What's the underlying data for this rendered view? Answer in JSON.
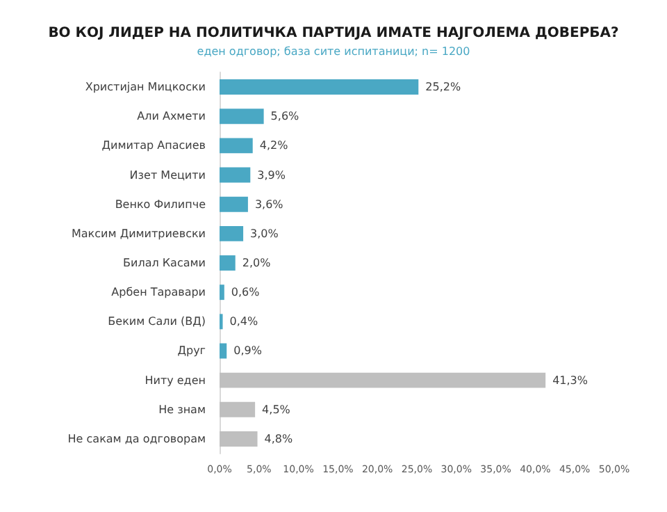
{
  "chart_data": {
    "type": "bar",
    "orientation": "horizontal",
    "title": "ВО КОЈ ЛИДЕР НА ПОЛИТИЧКА ПАРТИЈА ИМАТЕ НАЈГОЛЕМА ДОВЕРБА?",
    "subtitle": "еден одговор; база сите испитаници; n= 1200",
    "categories": [
      "Христијан Мицкоски",
      "Али Ахмети",
      "Димитар Апасиев",
      "Изет Мецити",
      "Венко Филипче",
      "Максим Димитриевски",
      "Билал Касами",
      "Арбен Таравари",
      "Беким Сали (ВД)",
      "Друг",
      "Ниту еден",
      "Не знам",
      "Не сакам да одговорам"
    ],
    "values": [
      25.2,
      5.6,
      4.2,
      3.9,
      3.6,
      3.0,
      2.0,
      0.6,
      0.4,
      0.9,
      41.3,
      4.5,
      4.8
    ],
    "value_labels": [
      "25,2%",
      "5,6%",
      "4,2%",
      "3,9%",
      "3,6%",
      "3,0%",
      "2,0%",
      "0,6%",
      "0,4%",
      "0,9%",
      "41,3%",
      "4,5%",
      "4,8%"
    ],
    "colors": [
      "#4aa8c4",
      "#4aa8c4",
      "#4aa8c4",
      "#4aa8c4",
      "#4aa8c4",
      "#4aa8c4",
      "#4aa8c4",
      "#4aa8c4",
      "#4aa8c4",
      "#4aa8c4",
      "#bfbfbf",
      "#bfbfbf",
      "#bfbfbf"
    ],
    "xlim": [
      0,
      50
    ],
    "xticks": [
      {
        "value": 0,
        "label": "0,0%"
      },
      {
        "value": 5,
        "label": "5,0%"
      },
      {
        "value": 10,
        "label": "10,0%"
      },
      {
        "value": 15,
        "label": "15,0%"
      },
      {
        "value": 20,
        "label": "20,0%"
      },
      {
        "value": 25,
        "label": "25,0%"
      },
      {
        "value": 30,
        "label": "30,0%"
      },
      {
        "value": 35,
        "label": "35,0%"
      },
      {
        "value": 40,
        "label": "40,0%"
      },
      {
        "value": 45,
        "label": "45,0%"
      },
      {
        "value": 50,
        "label": "50,0%"
      }
    ],
    "grid": false
  }
}
